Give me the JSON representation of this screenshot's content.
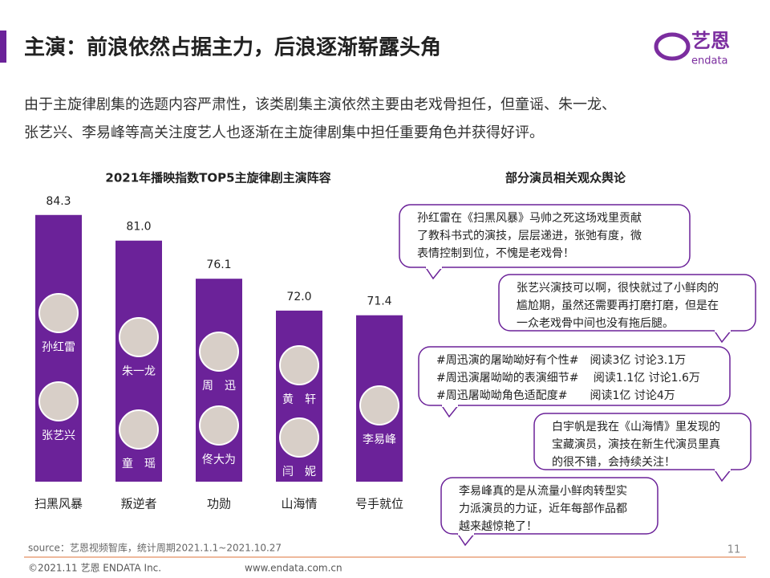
{
  "header": {
    "title": "主演：前浪依然占据主力，后浪逐渐崭露头角",
    "logo": "艺恩",
    "logo_sub": "endata"
  },
  "intro": [
    "由于主旋律剧集的选题内容严肃性，该类剧集主演依然主要由老戏骨担任，但童谣、朱一龙、",
    "张艺兴、李易峰等高关注度艺人也逐渐在主旋律剧集中担任重要角色并获得好评。"
  ],
  "chart_data": {
    "type": "bar",
    "title": "2021年播映指数TOP5主旋律剧主演阵容",
    "categories": [
      "扫黑风暴",
      "叛逆者",
      "功勋",
      "山海情",
      "号手就位"
    ],
    "values": [
      84.3,
      81.0,
      76.1,
      72.0,
      71.4
    ],
    "value_labels": [
      "84.3",
      "81.0",
      "76.1",
      "72.0",
      "71.4"
    ],
    "color": "#6b2299",
    "ylim": [
      50,
      85
    ]
  },
  "cast": [
    [
      "孙红雷",
      "张艺兴"
    ],
    [
      "朱一龙",
      "童　瑶"
    ],
    [
      "周　迅",
      "佟大为"
    ],
    [
      "黄　轩",
      "闫　妮"
    ],
    [
      "李易峰"
    ]
  ],
  "comments": {
    "title": "部分演员相关观众舆论",
    "bubbles": [
      [
        "孙红雷在《扫黑风暴》马帅之死这场戏里贡献",
        "了教科书式的演技，层层递进，张弛有度，微",
        "表情控制到位，不愧是老戏骨！"
      ],
      [
        "张艺兴演技可以啊，很快就过了小鲜肉的",
        "尴尬期，虽然还需要再打磨打磨，但是在",
        "一众老戏骨中间也没有拖后腿。"
      ],
      [
        "#周迅演的屠呦呦好有个性#　阅读3亿 讨论3.1万",
        "#周迅演屠呦呦的表演细节#　 阅读1.1亿 讨论1.6万",
        "#周迅屠呦呦角色适配度#　　阅读1亿  讨论4万"
      ],
      [
        "白宇帆是我在《山海情》里发现的",
        "宝藏演员，演技在新生代演员里真",
        "的很不错，会持续关注！"
      ],
      [
        "李易峰真的是从流量小鲜肉转型实",
        "力派演员的力证，近年每部作品都",
        "越来越惊艳了！"
      ]
    ]
  },
  "footer": {
    "source": "source：艺恩视频智库，统计周期2021.1.1~2021.10.27",
    "page": "11",
    "copyright": "©2021.11 艺恩 ENDATA Inc.",
    "url": "www.endata.com.cn"
  }
}
